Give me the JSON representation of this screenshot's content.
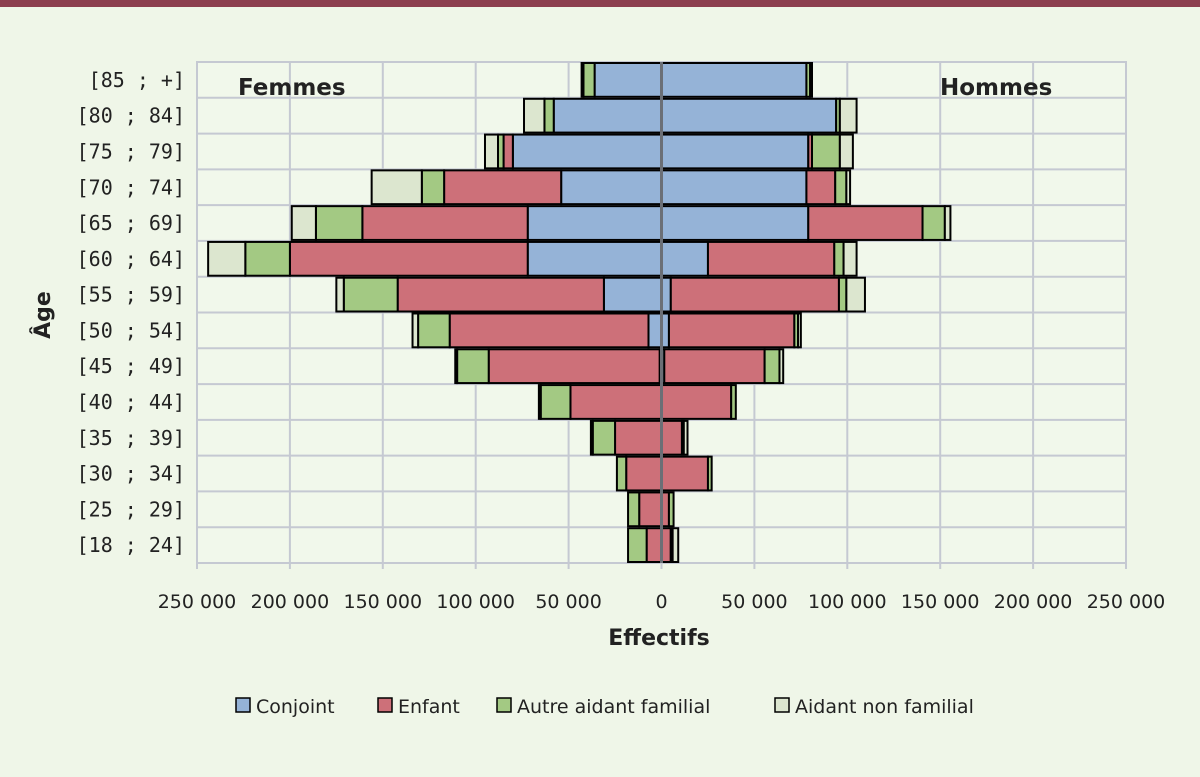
{
  "chart_data": {
    "type": "bar",
    "orientation": "horizontal",
    "stacked": true,
    "layout": "population-pyramid",
    "xlabel": "Effectifs",
    "ylabel": "Âge",
    "xlim": [
      -250000,
      250000
    ],
    "x_ticks": [
      "250 000",
      "200 000",
      "150 000",
      "100 000",
      "50 000",
      "0",
      "50 000",
      "100 000",
      "150 000",
      "200 000",
      "250 000"
    ],
    "grid": true,
    "legend_position": "bottom",
    "side_labels": {
      "left": "Femmes",
      "right": "Hommes"
    },
    "categories": [
      "[85 ; +]",
      "[80 ; 84]",
      "[75 ; 79]",
      "[70 ; 74]",
      "[65 ; 69]",
      "[60 ; 64]",
      "[55 ; 59]",
      "[50 ; 54]",
      "[45 ; 49]",
      "[40 ; 44]",
      "[35 ; 39]",
      "[30 ; 34]",
      "[25 ; 29]",
      "[18 ; 24]"
    ],
    "series": [
      {
        "name": "Conjoint",
        "color": "#95b3d7",
        "femmes": [
          36000,
          58000,
          80000,
          54000,
          72000,
          72000,
          31000,
          7000,
          1000,
          0,
          0,
          0,
          0,
          0
        ],
        "hommes": [
          78000,
          94000,
          79000,
          78000,
          79000,
          25000,
          5000,
          4000,
          1500,
          0,
          0,
          0,
          0,
          0
        ]
      },
      {
        "name": "Enfant",
        "color": "#cd7079",
        "femmes": [
          0,
          0,
          5000,
          63000,
          89000,
          128000,
          111000,
          107000,
          92000,
          49000,
          25000,
          19000,
          12000,
          8000
        ],
        "hommes": [
          0,
          0,
          2000,
          15500,
          61500,
          68000,
          90500,
          67500,
          54000,
          37500,
          11000,
          25000,
          4000,
          5000
        ]
      },
      {
        "name": "Autre aidant familial",
        "color": "#a3c983",
        "femmes": [
          6000,
          5000,
          3000,
          12000,
          25000,
          24000,
          29000,
          17000,
          17000,
          16000,
          12000,
          5000,
          6000,
          10000
        ],
        "hommes": [
          2000,
          2000,
          15000,
          6000,
          12000,
          5000,
          4000,
          2000,
          8000,
          2500,
          1000,
          2000,
          2500,
          1000
        ]
      },
      {
        "name": "Aidant non familial",
        "color": "#dce6cf",
        "femmes": [
          1000,
          11000,
          7000,
          27000,
          13000,
          20000,
          4000,
          3000,
          1000,
          1000,
          1000,
          0,
          0,
          0
        ],
        "hommes": [
          1000,
          9000,
          7000,
          2000,
          3000,
          7000,
          10000,
          1500,
          2000,
          0,
          2000,
          0,
          0,
          3000
        ]
      }
    ]
  }
}
